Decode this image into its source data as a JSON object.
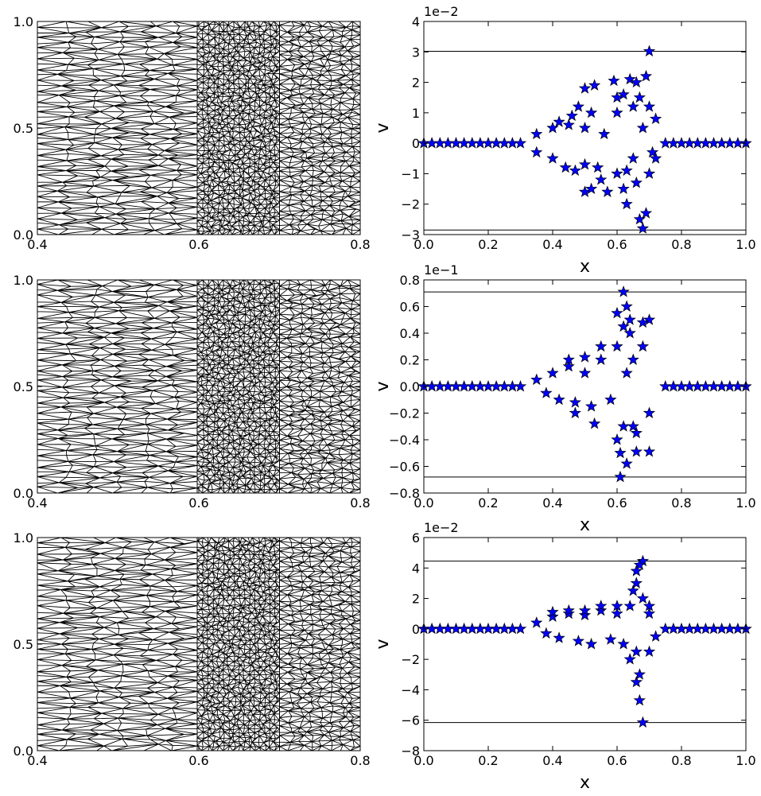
{
  "chart_data": [
    {
      "type": "mesh",
      "xlim": [
        0.4,
        0.8
      ],
      "ylim": [
        0,
        1
      ],
      "xticks": [
        0.4,
        0.6,
        0.8
      ],
      "yticks": [
        {
          "value": 0,
          "label": "0.0"
        },
        0.5,
        {
          "value": 1,
          "label": "1.0"
        }
      ]
    },
    {
      "type": "scatter",
      "xlabel": "x",
      "ylabel": "v",
      "offset_text": "1e−2",
      "color": "#0000ff",
      "xlim": [
        0,
        1
      ],
      "ylim": [
        -3,
        4
      ],
      "xticks": [
        {
          "value": 0,
          "label": "0.0"
        },
        0.2,
        0.4,
        0.6,
        0.8,
        {
          "value": 1,
          "label": "1.0"
        }
      ],
      "yticks": [
        {
          "value": -3,
          "label": "−3"
        },
        {
          "value": -2,
          "label": "−2"
        },
        {
          "value": -1,
          "label": "−1"
        },
        0,
        1,
        2,
        3,
        4
      ],
      "hlines": [
        3.02,
        -2.85
      ],
      "x": [
        0,
        0.025,
        0.05,
        0.075,
        0.1,
        0.125,
        0.15,
        0.175,
        0.2,
        0.225,
        0.25,
        0.275,
        0.3,
        0.75,
        0.775,
        0.8,
        0.825,
        0.85,
        0.875,
        0.9,
        0.925,
        0.95,
        0.975,
        1,
        0.35,
        0.35,
        0.4,
        0.4,
        0.42,
        0.44,
        0.45,
        0.47,
        0.46,
        0.5,
        0.5,
        0.52,
        0.54,
        0.56,
        0.6,
        0.6,
        0.62,
        0.63,
        0.65,
        0.65,
        0.67,
        0.68,
        0.7,
        0.71,
        0.5,
        0.52,
        0.48,
        0.5,
        0.53,
        0.55,
        0.57,
        0.59,
        0.6,
        0.62,
        0.63,
        0.64,
        0.66,
        0.67,
        0.68,
        0.69,
        0.7,
        0.69,
        0.66,
        0.7,
        0.72,
        0.72
      ],
      "y": [
        0,
        0,
        0,
        0,
        0,
        0,
        0,
        0,
        0,
        0,
        0,
        0,
        0,
        0,
        0,
        0,
        0,
        0,
        0,
        0,
        0,
        0,
        0,
        0,
        0.3,
        -0.3,
        0.5,
        -0.5,
        0.7,
        -0.8,
        0.6,
        -0.9,
        0.9,
        0.5,
        -0.7,
        1.0,
        -0.8,
        0.3,
        1.0,
        -1.0,
        1.6,
        -0.9,
        1.2,
        -0.5,
        1.5,
        0.5,
        1.2,
        -0.3,
        -1.6,
        -1.5,
        1.2,
        1.8,
        1.9,
        -1.2,
        -1.6,
        2.05,
        1.5,
        -1.5,
        -2.0,
        2.1,
        2.0,
        -2.5,
        -2.8,
        2.2,
        3.02,
        -2.3,
        -1.3,
        -1.0,
        0.8,
        -0.5
      ]
    },
    {
      "type": "mesh",
      "xlim": [
        0.4,
        0.8
      ],
      "ylim": [
        0,
        1
      ],
      "xticks": [
        0.4,
        0.6,
        0.8
      ],
      "yticks": [
        {
          "value": 0,
          "label": "0.0"
        },
        0.5,
        {
          "value": 1,
          "label": "1.0"
        }
      ]
    },
    {
      "type": "scatter",
      "xlabel": "x",
      "ylabel": "v",
      "offset_text": "1e−1",
      "color": "#0000ff",
      "xlim": [
        0,
        1
      ],
      "ylim": [
        -0.8,
        0.8
      ],
      "xticks": [
        {
          "value": 0,
          "label": "0.0"
        },
        0.2,
        0.4,
        0.6,
        0.8,
        {
          "value": 1,
          "label": "1.0"
        }
      ],
      "yticks": [
        {
          "value": -0.8,
          "label": "−0.8"
        },
        {
          "value": -0.6,
          "label": "−0.6"
        },
        {
          "value": -0.4,
          "label": "−0.4"
        },
        {
          "value": -0.2,
          "label": "−0.2"
        },
        {
          "value": 0,
          "label": "0.0"
        },
        0.2,
        0.4,
        0.6,
        0.8
      ],
      "hlines": [
        0.71,
        -0.68
      ],
      "x": [
        0,
        0.025,
        0.05,
        0.075,
        0.1,
        0.125,
        0.15,
        0.175,
        0.2,
        0.225,
        0.25,
        0.275,
        0.3,
        0.75,
        0.775,
        0.8,
        0.825,
        0.85,
        0.875,
        0.9,
        0.925,
        0.95,
        0.975,
        1,
        0.35,
        0.38,
        0.4,
        0.42,
        0.45,
        0.47,
        0.5,
        0.52,
        0.55,
        0.58,
        0.6,
        0.62,
        0.64,
        0.66,
        0.68,
        0.7,
        0.65,
        0.63,
        0.62,
        0.61,
        0.63,
        0.63,
        0.6,
        0.64,
        0.7,
        0.68,
        0.7,
        0.66,
        0.55,
        0.53,
        0.45,
        0.47,
        0.5,
        0.6,
        0.65,
        0.62,
        0.61
      ],
      "y": [
        0,
        0,
        0,
        0,
        0,
        0,
        0,
        0,
        0,
        0,
        0,
        0,
        0,
        0,
        0,
        0,
        0,
        0,
        0,
        0,
        0,
        0,
        0,
        0,
        0.05,
        -0.05,
        0.1,
        -0.1,
        0.15,
        -0.12,
        0.1,
        -0.15,
        0.2,
        -0.1,
        0.3,
        -0.3,
        0.4,
        -0.35,
        0.3,
        -0.2,
        0.2,
        0.1,
        0.71,
        -0.68,
        -0.58,
        0.6,
        0.55,
        0.5,
        0.5,
        0.48,
        -0.49,
        -0.49,
        0.3,
        -0.28,
        0.2,
        -0.2,
        0.22,
        -0.4,
        -0.3,
        0.45,
        -0.5
      ]
    },
    {
      "type": "mesh",
      "xlim": [
        0.4,
        0.8
      ],
      "ylim": [
        0,
        1
      ],
      "xticks": [
        0.4,
        0.6,
        0.8
      ],
      "yticks": [
        {
          "value": 0,
          "label": "0.0"
        },
        0.5,
        {
          "value": 1,
          "label": "1.0"
        }
      ]
    },
    {
      "type": "scatter",
      "xlabel": "x",
      "ylabel": "v",
      "offset_text": "1e−2",
      "color": "#0000ff",
      "xlim": [
        0,
        1
      ],
      "ylim": [
        -8,
        6
      ],
      "xticks": [
        {
          "value": 0,
          "label": "0.0"
        },
        0.2,
        0.4,
        0.6,
        0.8,
        {
          "value": 1,
          "label": "1.0"
        }
      ],
      "yticks": [
        {
          "value": -8,
          "label": "−8"
        },
        {
          "value": -6,
          "label": "−6"
        },
        {
          "value": -4,
          "label": "−4"
        },
        {
          "value": -2,
          "label": "−2"
        },
        0,
        2,
        4,
        6
      ],
      "hlines": [
        4.45,
        -6.15
      ],
      "x": [
        0,
        0.025,
        0.05,
        0.075,
        0.1,
        0.125,
        0.15,
        0.175,
        0.2,
        0.225,
        0.25,
        0.275,
        0.3,
        0.75,
        0.775,
        0.8,
        0.825,
        0.85,
        0.875,
        0.9,
        0.925,
        0.95,
        0.975,
        1,
        0.35,
        0.38,
        0.4,
        0.42,
        0.45,
        0.48,
        0.5,
        0.52,
        0.55,
        0.58,
        0.6,
        0.62,
        0.64,
        0.66,
        0.68,
        0.7,
        0.72,
        0.68,
        0.67,
        0.66,
        0.68,
        0.67,
        0.66,
        0.65,
        0.64,
        0.6,
        0.5,
        0.45,
        0.4,
        0.55,
        0.7,
        0.7,
        0.67,
        0.66
      ],
      "y": [
        0,
        0,
        0,
        0,
        0,
        0,
        0,
        0,
        0,
        0,
        0,
        0,
        0,
        0,
        0,
        0,
        0,
        0,
        0,
        0,
        0,
        0,
        0,
        0,
        0.4,
        -0.3,
        0.8,
        -0.6,
        1.0,
        -0.8,
        0.9,
        -1.0,
        1.2,
        -0.7,
        1.0,
        -1.0,
        1.5,
        -1.5,
        2.0,
        1.0,
        -0.5,
        4.45,
        4.2,
        3.8,
        -6.15,
        -4.7,
        -3.5,
        2.5,
        -2.0,
        1.5,
        1.2,
        1.2,
        1.1,
        1.5,
        1.5,
        -1.5,
        -3.0,
        3.0
      ]
    }
  ]
}
